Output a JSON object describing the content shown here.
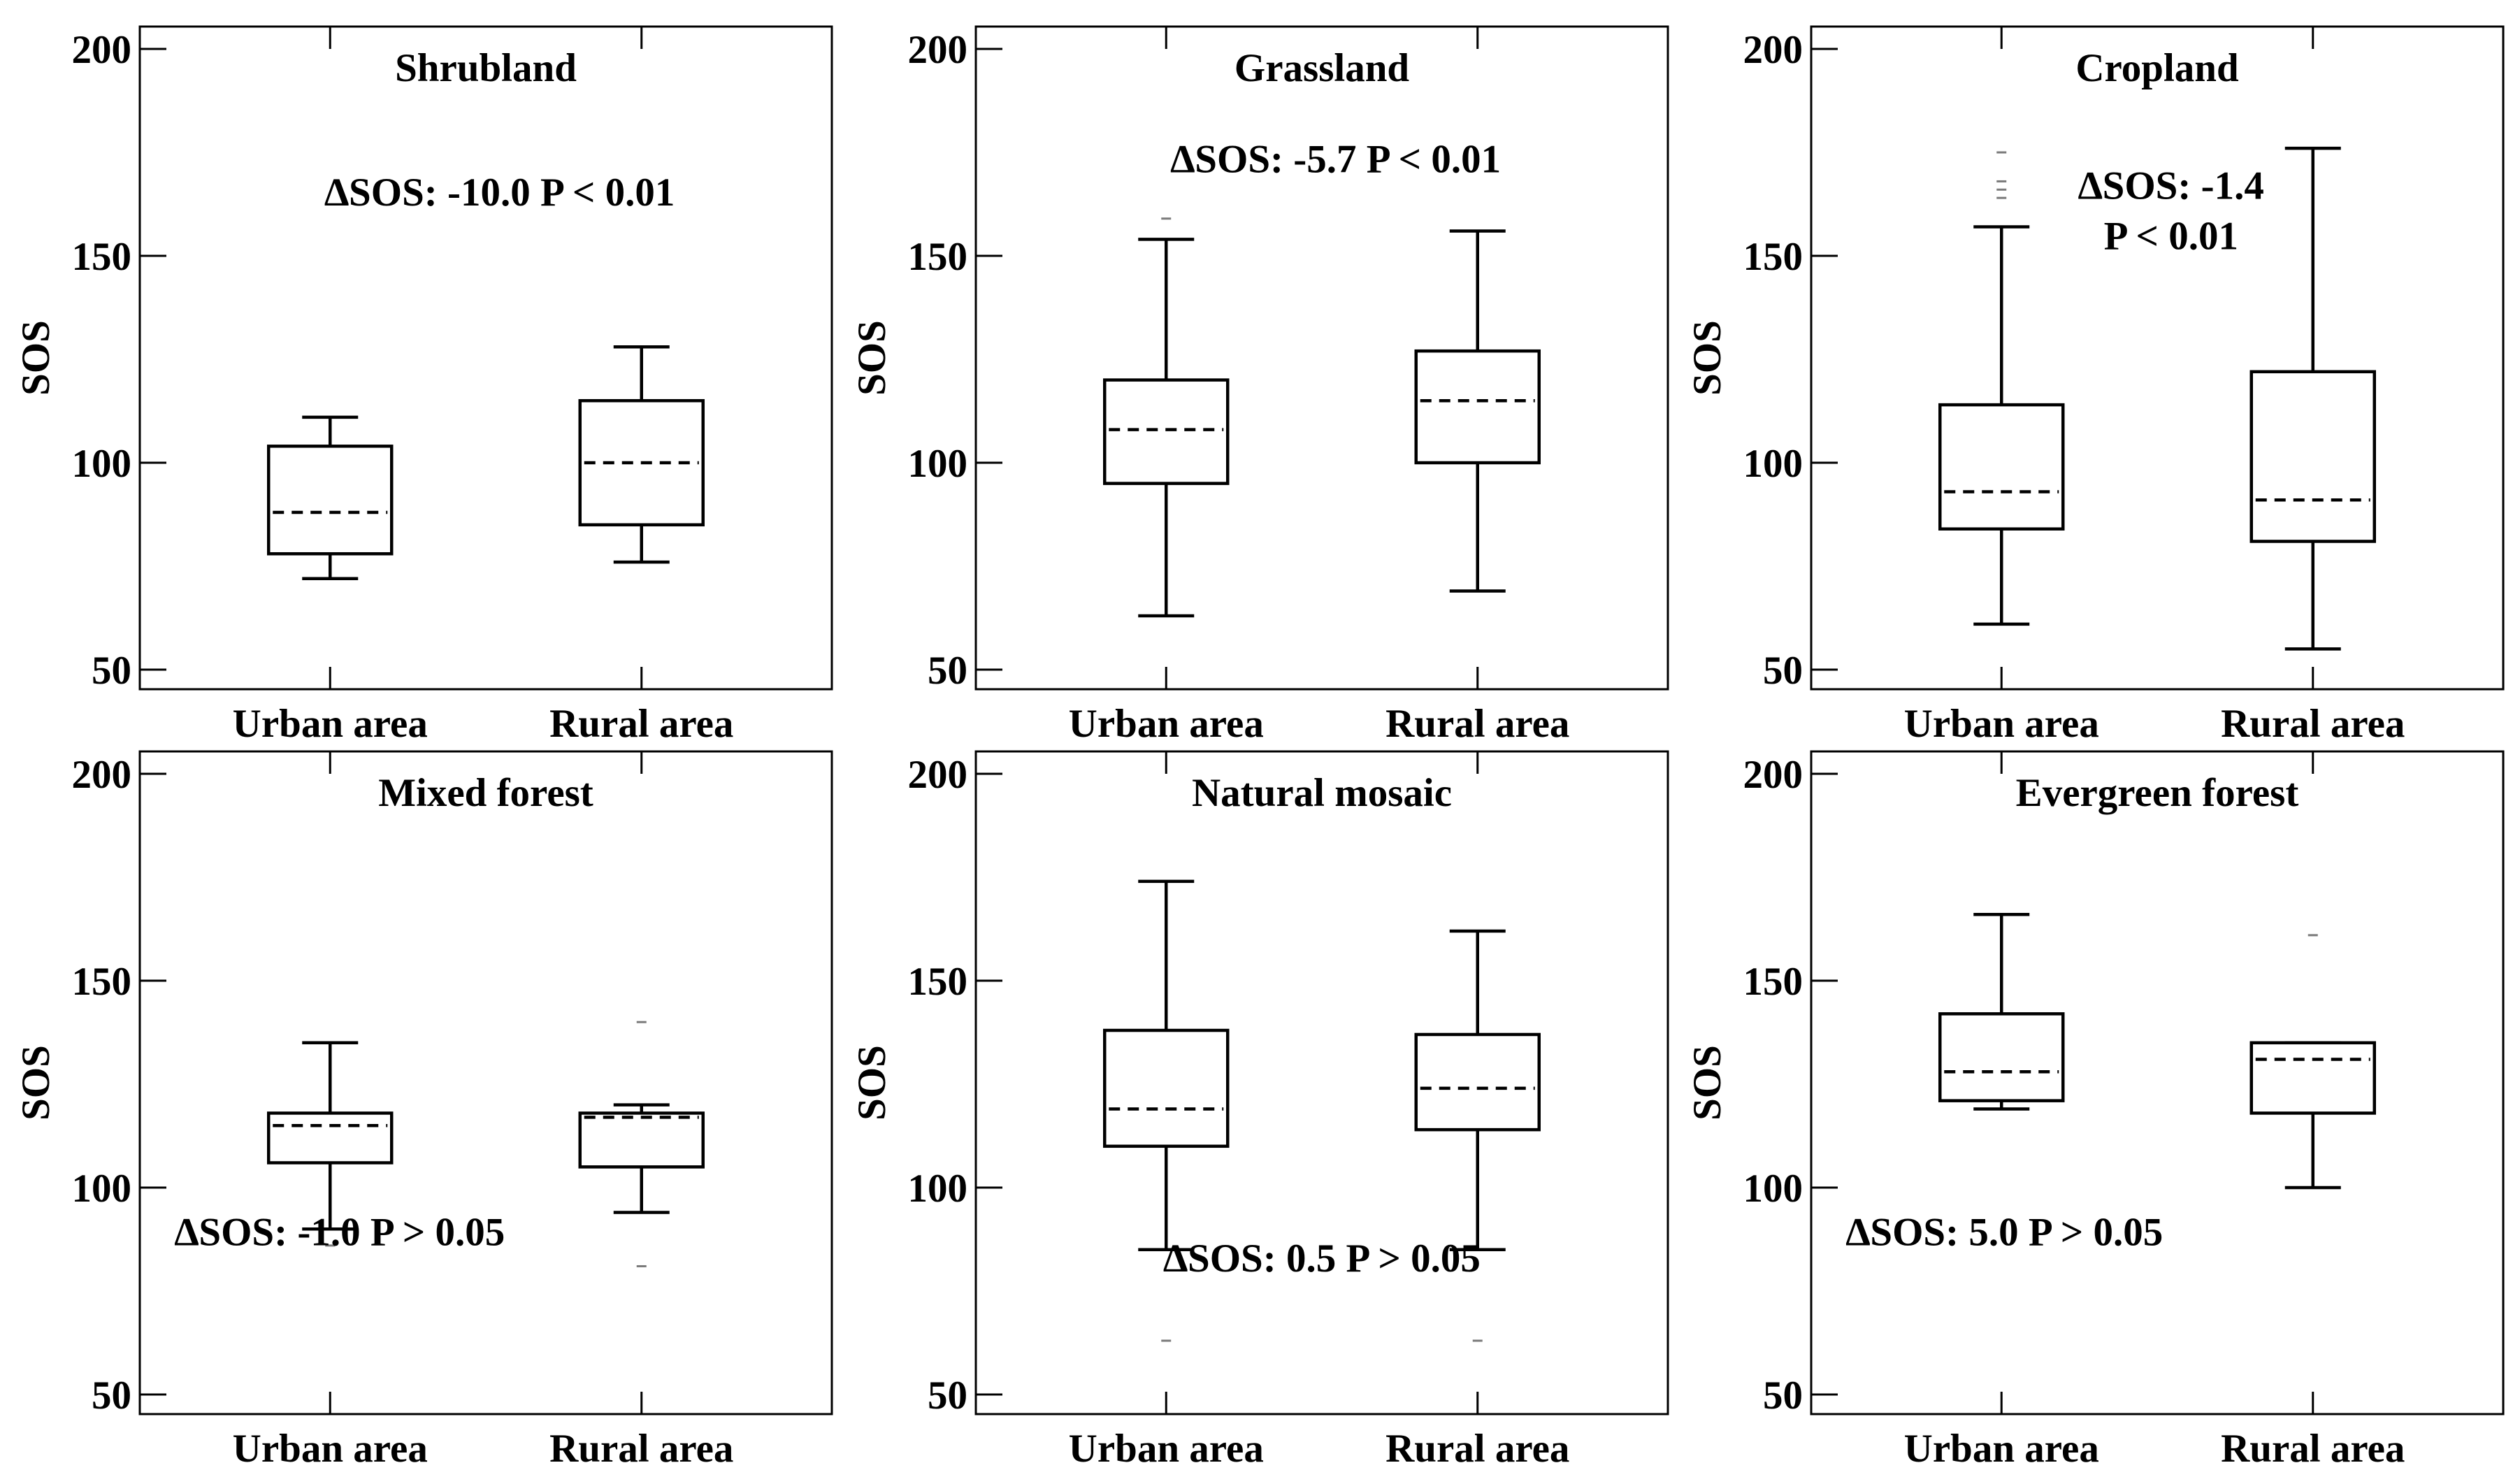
{
  "chart_data": [
    {
      "type": "box",
      "title": "Shrubland",
      "ylabel": "SOS",
      "ylim": [
        50,
        200
      ],
      "yticks": [
        50,
        100,
        150,
        200
      ],
      "categories": [
        "Urban area",
        "Rural area"
      ],
      "boxes": [
        {
          "category": "Urban area",
          "whisker_low": 72,
          "q1": 78,
          "median": 88,
          "q3": 104,
          "whisker_high": 111,
          "outliers": []
        },
        {
          "category": "Rural area",
          "whisker_low": 76,
          "q1": 85,
          "median": 100,
          "q3": 115,
          "whisker_high": 128,
          "outliers": []
        }
      ],
      "annotation_lines": [
        "∆SOS: -10.0   P < 0.01"
      ],
      "annotation_position": "upper-center"
    },
    {
      "type": "box",
      "title": "Grassland",
      "ylabel": "SOS",
      "ylim": [
        50,
        200
      ],
      "yticks": [
        50,
        100,
        150,
        200
      ],
      "categories": [
        "Urban area",
        "Rural area"
      ],
      "boxes": [
        {
          "category": "Urban area",
          "whisker_low": 63,
          "q1": 95,
          "median": 108,
          "q3": 120,
          "whisker_high": 154,
          "outliers": [
            159
          ]
        },
        {
          "category": "Rural area",
          "whisker_low": 69,
          "q1": 100,
          "median": 115,
          "q3": 127,
          "whisker_high": 156,
          "outliers": []
        }
      ],
      "annotation_lines": [
        "∆SOS: -5.7   P < 0.01"
      ],
      "annotation_position": "upper-center"
    },
    {
      "type": "box",
      "title": "Cropland",
      "ylabel": "SOS",
      "ylim": [
        50,
        200
      ],
      "yticks": [
        50,
        100,
        150,
        200
      ],
      "categories": [
        "Urban area",
        "Rural area"
      ],
      "boxes": [
        {
          "category": "Urban area",
          "whisker_low": 61,
          "q1": 84,
          "median": 93,
          "q3": 114,
          "whisker_high": 157,
          "outliers": [
            164,
            166,
            168,
            175
          ]
        },
        {
          "category": "Rural area",
          "whisker_low": 55,
          "q1": 81,
          "median": 91,
          "q3": 122,
          "whisker_high": 176,
          "outliers": []
        }
      ],
      "annotation_lines": [
        "∆SOS: -1.4",
        "P < 0.01"
      ],
      "annotation_position": "upper-center"
    },
    {
      "type": "box",
      "title": "Mixed forest",
      "ylabel": "SOS",
      "ylim": [
        50,
        200
      ],
      "yticks": [
        50,
        100,
        150,
        200
      ],
      "categories": [
        "Urban area",
        "Rural area"
      ],
      "boxes": [
        {
          "category": "Urban area",
          "whisker_low": 90,
          "q1": 106,
          "median": 115,
          "q3": 118,
          "whisker_high": 135,
          "outliers": [
            86
          ]
        },
        {
          "category": "Rural area",
          "whisker_low": 94,
          "q1": 105,
          "median": 117,
          "q3": 118,
          "whisker_high": 120,
          "outliers": [
            140,
            81
          ]
        }
      ],
      "annotation_lines": [
        "∆SOS: -1.0    P > 0.05"
      ],
      "annotation_position": "lower-left"
    },
    {
      "type": "box",
      "title": "Natural mosaic",
      "ylabel": "SOS",
      "ylim": [
        50,
        200
      ],
      "yticks": [
        50,
        100,
        150,
        200
      ],
      "categories": [
        "Urban area",
        "Rural area"
      ],
      "boxes": [
        {
          "category": "Urban area",
          "whisker_low": 85,
          "q1": 110,
          "median": 119,
          "q3": 138,
          "whisker_high": 174,
          "outliers": [
            63
          ]
        },
        {
          "category": "Rural area",
          "whisker_low": 85,
          "q1": 114,
          "median": 124,
          "q3": 137,
          "whisker_high": 162,
          "outliers": [
            63
          ]
        }
      ],
      "annotation_lines": [
        "∆SOS: 0.5    P > 0.05"
      ],
      "annotation_position": "lower-center"
    },
    {
      "type": "box",
      "title": "Evergreen forest",
      "ylabel": "SOS",
      "ylim": [
        50,
        200
      ],
      "yticks": [
        50,
        100,
        150,
        200
      ],
      "categories": [
        "Urban area",
        "Rural area"
      ],
      "boxes": [
        {
          "category": "Urban area",
          "whisker_low": 119,
          "q1": 121,
          "median": 128,
          "q3": 142,
          "whisker_high": 166,
          "outliers": []
        },
        {
          "category": "Rural area",
          "whisker_low": 100,
          "q1": 118,
          "median": 131,
          "q3": 135,
          "whisker_high": 135,
          "outliers": [
            161
          ]
        }
      ],
      "annotation_lines": [
        "∆SOS: 5.0    P > 0.05"
      ],
      "annotation_position": "lower-left"
    }
  ]
}
